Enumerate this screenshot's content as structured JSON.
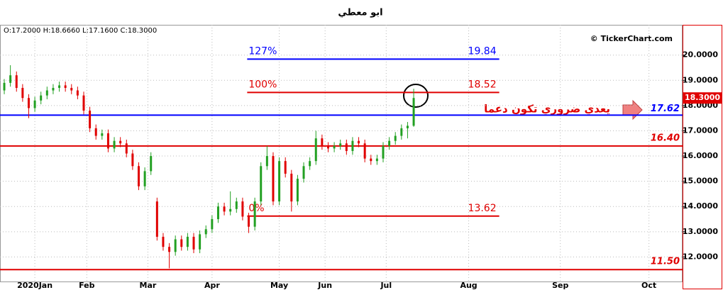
{
  "chart_data": {
    "type": "candlestick",
    "title": "ابو معطي",
    "ohlc_text": "O:17.2000 H:18.6660 L:17.1600 C:18.3000",
    "copyright": "© TickerChart.com",
    "annotation": "يعدي ضروري تكون دعما",
    "xlim": [
      -1.4,
      222
    ],
    "xticks": [
      {
        "value": 10,
        "label": "2020Jan"
      },
      {
        "value": 27,
        "label": "Feb"
      },
      {
        "value": 47,
        "label": "Mar"
      },
      {
        "value": 68,
        "label": "Apr"
      },
      {
        "value": 90,
        "label": "May"
      },
      {
        "value": 105,
        "label": "Jun"
      },
      {
        "value": 125,
        "label": "Jul"
      },
      {
        "value": 152,
        "label": "Aug"
      },
      {
        "value": 182,
        "label": "Sep"
      },
      {
        "value": 211,
        "label": "Oct"
      }
    ],
    "ylim": [
      11.0,
      21.2
    ],
    "yticks": [
      {
        "value": 12,
        "label": "12.0000"
      },
      {
        "value": 13,
        "label": "13.0000"
      },
      {
        "value": 14,
        "label": "14.0000"
      },
      {
        "value": 15,
        "label": "15.0000"
      },
      {
        "value": 16,
        "label": "16.0000"
      },
      {
        "value": 17,
        "label": "17.0000"
      },
      {
        "value": 18,
        "label": "18.0000"
      },
      {
        "value": 19,
        "label": "19.0000"
      },
      {
        "value": 20,
        "label": "20.0000"
      }
    ],
    "grid": true,
    "up_color": "#22a022",
    "down_color": "#e00000",
    "x": [
      0,
      2,
      4,
      6,
      8,
      10,
      12,
      14,
      16,
      18,
      20,
      22,
      24,
      26,
      28,
      30,
      32,
      34,
      36,
      38,
      40,
      42,
      44,
      46,
      48,
      50,
      52,
      54,
      56,
      58,
      60,
      62,
      64,
      66,
      68,
      70,
      72,
      74,
      76,
      78,
      80,
      82,
      84,
      86,
      88,
      90,
      92,
      94,
      96,
      98,
      100,
      102,
      104,
      106,
      108,
      110,
      112,
      114,
      116,
      118,
      120,
      122,
      124,
      126,
      128,
      130,
      132,
      134
    ],
    "open": [
      18.6,
      18.9,
      19.2,
      18.7,
      18.3,
      17.9,
      18.2,
      18.4,
      18.6,
      18.7,
      18.8,
      18.7,
      18.6,
      18.4,
      17.8,
      17.1,
      16.8,
      16.9,
      16.3,
      16.6,
      16.5,
      16.1,
      15.6,
      14.8,
      15.4,
      14.2,
      12.8,
      12.4,
      12.2,
      12.7,
      12.4,
      12.8,
      12.3,
      12.9,
      13.1,
      13.5,
      14.0,
      13.8,
      13.9,
      14.2,
      13.6,
      13.2,
      14.2,
      15.6,
      16.0,
      14.2,
      15.8,
      15.3,
      14.2,
      15.1,
      15.6,
      15.8,
      16.7,
      16.4,
      16.3,
      16.4,
      16.5,
      16.2,
      16.6,
      16.5,
      15.9,
      15.8,
      15.9,
      16.4,
      16.6,
      16.8,
      17.1,
      17.2
    ],
    "high": [
      19.05,
      19.6,
      19.35,
      18.85,
      18.45,
      18.35,
      18.55,
      18.75,
      18.85,
      18.95,
      18.95,
      18.85,
      18.75,
      18.55,
      17.95,
      17.25,
      17.05,
      17.05,
      16.75,
      16.75,
      16.65,
      16.25,
      15.75,
      15.55,
      16.15,
      14.35,
      12.95,
      12.55,
      12.85,
      12.85,
      12.95,
      12.95,
      13.05,
      13.25,
      13.65,
      14.15,
      14.15,
      14.6,
      14.35,
      14.35,
      13.75,
      14.35,
      15.75,
      16.4,
      16.15,
      15.95,
      15.95,
      15.45,
      15.25,
      15.75,
      15.95,
      17.0,
      16.85,
      16.55,
      16.55,
      16.65,
      16.65,
      16.75,
      16.75,
      16.65,
      16.05,
      16.05,
      16.55,
      16.75,
      16.95,
      17.25,
      17.35,
      18.666
    ],
    "low": [
      18.45,
      18.75,
      18.55,
      18.15,
      17.5,
      17.75,
      18.05,
      18.25,
      18.45,
      18.55,
      18.55,
      18.45,
      18.25,
      17.65,
      16.95,
      16.65,
      16.65,
      16.15,
      16.15,
      16.35,
      15.95,
      15.45,
      14.65,
      14.65,
      15.25,
      12.65,
      12.25,
      11.55,
      12.05,
      12.25,
      12.25,
      12.15,
      12.15,
      12.75,
      12.95,
      13.35,
      13.65,
      13.65,
      13.75,
      13.45,
      12.95,
      13.05,
      14.05,
      15.45,
      14.05,
      14.05,
      15.15,
      13.8,
      14.05,
      14.95,
      15.45,
      15.65,
      16.25,
      16.15,
      16.15,
      16.25,
      16.05,
      16.05,
      16.35,
      15.75,
      15.65,
      15.65,
      15.75,
      16.25,
      16.45,
      16.65,
      16.7,
      17.16
    ],
    "close": [
      18.9,
      19.2,
      18.7,
      18.3,
      17.9,
      18.2,
      18.4,
      18.6,
      18.7,
      18.8,
      18.7,
      18.6,
      18.4,
      17.8,
      17.1,
      16.8,
      16.9,
      16.3,
      16.6,
      16.5,
      16.1,
      15.6,
      14.8,
      15.4,
      16.0,
      12.8,
      12.4,
      12.2,
      12.7,
      12.4,
      12.8,
      12.3,
      12.9,
      13.1,
      13.5,
      14.0,
      13.8,
      13.9,
      14.2,
      13.6,
      13.2,
      14.2,
      15.6,
      16.0,
      14.2,
      15.8,
      15.3,
      14.2,
      15.1,
      15.6,
      15.8,
      16.7,
      16.4,
      16.3,
      16.4,
      16.5,
      16.2,
      16.6,
      16.5,
      15.9,
      15.8,
      15.9,
      16.4,
      16.6,
      16.8,
      17.1,
      17.2,
      18.3
    ],
    "last_price": {
      "value": 18.3,
      "label": "18.3000"
    },
    "levels": [
      {
        "value": 17.62,
        "color": "#0000ff"
      },
      {
        "value": 16.4,
        "value_label": "16.40",
        "color": "#e00000"
      },
      {
        "value": 11.5,
        "value_label": "11.50",
        "color": "#e00000"
      }
    ],
    "fib_levels": [
      {
        "name": "127%",
        "value": 19.84,
        "x": [
          79.5,
          162
        ],
        "color": "#0000ff"
      },
      {
        "name": "100%",
        "value": 18.52,
        "x": [
          79.5,
          162
        ],
        "color": "#e00000"
      },
      {
        "name": "0%",
        "value": 13.62,
        "x": [
          79.5,
          162
        ],
        "color": "#e00000"
      }
    ]
  }
}
